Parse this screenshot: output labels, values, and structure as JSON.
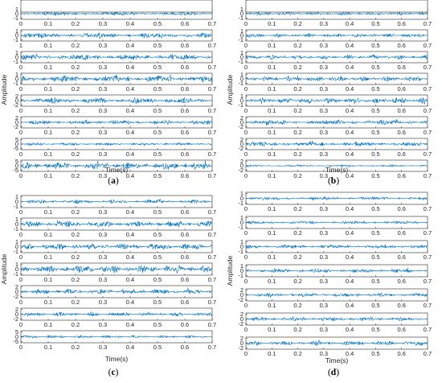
{
  "figure": {
    "signal_color": "#0072BD",
    "axis_color": "#262626",
    "x_ticks": [
      "0",
      "0.1",
      "0.2",
      "0.3",
      "0.4",
      "0.5",
      "0.6",
      "0.7"
    ],
    "x_label": "Time(s)",
    "y_label": "Amplitude"
  },
  "chart_data": [
    {
      "type": "line",
      "panel": "(a)",
      "xlabel": "Time(s)",
      "ylabel": "Amplitude",
      "xlim": [
        0,
        0.7
      ],
      "subplots": [
        {
          "ylim": [
            -1,
            1
          ],
          "yticks": [
            "1",
            "0",
            "-1"
          ],
          "amplitude": 0.35,
          "seed": 11
        },
        {
          "ylim": [
            -1,
            1
          ],
          "yticks": [
            "1",
            "0",
            "-1"
          ],
          "amplitude": 0.55,
          "seed": 12,
          "first_xtick": "1"
        },
        {
          "ylim": [
            -1,
            1
          ],
          "yticks": [
            "1",
            "0",
            "-1"
          ],
          "amplitude": 0.6,
          "seed": 13
        },
        {
          "ylim": [
            -1,
            1
          ],
          "yticks": [
            "1",
            "0",
            "-1"
          ],
          "amplitude": 0.7,
          "seed": 14
        },
        {
          "ylim": [
            -2,
            2
          ],
          "yticks": [
            "2",
            "0",
            "-2"
          ],
          "amplitude": 0.6,
          "seed": 15
        },
        {
          "ylim": [
            -2,
            2
          ],
          "yticks": [
            "2",
            "0",
            "-2"
          ],
          "amplitude": 0.45,
          "seed": 16
        },
        {
          "ylim": [
            -5,
            5
          ],
          "yticks": [
            "5",
            "0",
            "-5"
          ],
          "amplitude": 0.3,
          "seed": 17
        },
        {
          "ylim": [
            -5,
            5
          ],
          "yticks": [
            "5",
            "0",
            "-5"
          ],
          "amplitude": 0.75,
          "seed": 18
        }
      ]
    },
    {
      "type": "line",
      "panel": "(b)",
      "xlabel": "Time(s)",
      "ylabel": "Amplitude",
      "xlim": [
        0,
        0.7
      ],
      "subplots": [
        {
          "ylim": [
            -1,
            1
          ],
          "yticks": [
            "1",
            "0",
            "-1"
          ],
          "amplitude": 0.35,
          "seed": 21
        },
        {
          "ylim": [
            -1,
            1
          ],
          "yticks": [
            "1",
            "0",
            "-1"
          ],
          "amplitude": 0.4,
          "seed": 22
        },
        {
          "ylim": [
            -1,
            1
          ],
          "yticks": [
            "1",
            "0",
            "-1"
          ],
          "amplitude": 0.45,
          "seed": 23
        },
        {
          "ylim": [
            -1,
            1
          ],
          "yticks": [
            "1",
            "0",
            "-1"
          ],
          "amplitude": 0.55,
          "seed": 24
        },
        {
          "ylim": [
            -1,
            1
          ],
          "yticks": [
            "1",
            "0",
            "-1"
          ],
          "amplitude": 0.6,
          "seed": 25
        },
        {
          "ylim": [
            -2,
            2
          ],
          "yticks": [
            "2",
            "0",
            "-2"
          ],
          "amplitude": 0.5,
          "seed": 26
        },
        {
          "ylim": [
            -2,
            2
          ],
          "yticks": [
            "2",
            "0",
            "-2"
          ],
          "amplitude": 0.45,
          "seed": 27
        },
        {
          "ylim": [
            -2,
            2
          ],
          "yticks": [
            "2",
            "0",
            "-2"
          ],
          "amplitude": 0.2,
          "seed": 28
        }
      ]
    },
    {
      "type": "line",
      "panel": "(c)",
      "xlabel": "Time(s)",
      "ylabel": "Amplitude",
      "xlim": [
        0,
        0.7
      ],
      "subplots": [
        {
          "ylim": [
            -1,
            1
          ],
          "yticks": [
            "1",
            "0",
            "-1"
          ],
          "amplitude": 0.35,
          "seed": 31
        },
        {
          "ylim": [
            -1,
            1
          ],
          "yticks": [
            "1",
            "0",
            "-1"
          ],
          "amplitude": 0.6,
          "seed": 32
        },
        {
          "ylim": [
            -1,
            1
          ],
          "yticks": [
            "1",
            "0",
            "-1"
          ],
          "amplitude": 0.6,
          "seed": 33
        },
        {
          "ylim": [
            -1,
            1
          ],
          "yticks": [
            "1",
            "0",
            "-1"
          ],
          "amplitude": 0.75,
          "seed": 34
        },
        {
          "ylim": [
            -2,
            2
          ],
          "yticks": [
            "2",
            "0",
            "-2"
          ],
          "amplitude": 0.5,
          "seed": 35
        },
        {
          "ylim": [
            -2,
            2
          ],
          "yticks": [
            "2",
            "0",
            "-2"
          ],
          "amplitude": 0.4,
          "seed": 36
        },
        {
          "ylim": [
            -5,
            5
          ],
          "yticks": [
            "5",
            "0",
            "-5"
          ],
          "amplitude": 0.25,
          "seed": 37
        },
        {
          "ylim": [
            -5,
            5
          ],
          "yticks": [
            "5",
            "0",
            "-5"
          ],
          "amplitude": 0.7,
          "seed": 38
        }
      ]
    },
    {
      "type": "line",
      "panel": "(d)",
      "xlabel": "Time(s)",
      "ylabel": "Amplitude",
      "xlim": [
        0,
        0.7
      ],
      "subplots": [
        {
          "ylim": [
            -1,
            1
          ],
          "yticks": [
            "1",
            "0",
            "-1"
          ],
          "amplitude": 0.3,
          "seed": 41
        },
        {
          "ylim": [
            -1,
            1
          ],
          "yticks": [
            "1",
            "0",
            "-1"
          ],
          "amplitude": 0.3,
          "seed": 42
        },
        {
          "ylim": [
            -1,
            1
          ],
          "yticks": [
            "1",
            "0",
            "-1"
          ],
          "amplitude": 0.35,
          "seed": 43
        },
        {
          "ylim": [
            -1,
            1
          ],
          "yticks": [
            "1",
            "0",
            "-1"
          ],
          "amplitude": 0.4,
          "seed": 44
        },
        {
          "ylim": [
            -2,
            2
          ],
          "yticks": [
            "2",
            "0",
            "-2"
          ],
          "amplitude": 0.35,
          "seed": 45
        },
        {
          "ylim": [
            -2,
            2
          ],
          "yticks": [
            "2",
            "0",
            "-2"
          ],
          "amplitude": 0.4,
          "seed": 46
        },
        {
          "ylim": [
            -2,
            2
          ],
          "yticks": [
            "2",
            "0",
            "-2"
          ],
          "amplitude": 0.45,
          "seed": 47
        },
        {
          "ylim": [
            -2,
            2
          ],
          "yticks": [
            "2",
            "0",
            "-2"
          ],
          "amplitude": 0.5,
          "seed": 48
        }
      ]
    }
  ]
}
